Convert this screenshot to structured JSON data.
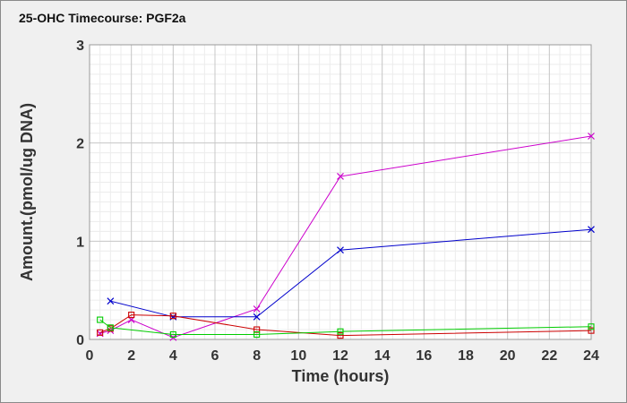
{
  "chart_data": {
    "type": "line",
    "title": "25-OHC Timecourse: PGF2a",
    "xlabel": "Time (hours)",
    "ylabel": "Amount.(pmol/ug DNA)",
    "xlim": [
      0,
      24
    ],
    "ylim": [
      0,
      3
    ],
    "x_ticks": [
      0,
      2,
      4,
      6,
      8,
      10,
      12,
      14,
      16,
      18,
      20,
      22,
      24
    ],
    "y_ticks": [
      0,
      1,
      2,
      3
    ],
    "grid": true,
    "legend": "none",
    "series": [
      {
        "color": "#cc00cc",
        "marker": "x",
        "x": [
          0.5,
          1,
          2,
          4,
          8,
          12,
          24
        ],
        "y": [
          0.06,
          0.09,
          0.2,
          0.02,
          0.31,
          1.66,
          2.07
        ]
      },
      {
        "color": "#0000cc",
        "marker": "x",
        "x": [
          1,
          4,
          8,
          12,
          24
        ],
        "y": [
          0.39,
          0.23,
          0.23,
          0.91,
          1.12
        ]
      },
      {
        "color": "#cc0000",
        "marker": "square",
        "x": [
          0.5,
          1,
          2,
          4,
          8,
          12,
          24
        ],
        "y": [
          0.07,
          0.11,
          0.25,
          0.24,
          0.1,
          0.04,
          0.09
        ]
      },
      {
        "color": "#00cc00",
        "marker": "square",
        "x": [
          0.5,
          1,
          4,
          8,
          12,
          24
        ],
        "y": [
          0.2,
          0.12,
          0.05,
          0.05,
          0.08,
          0.13
        ]
      }
    ]
  }
}
